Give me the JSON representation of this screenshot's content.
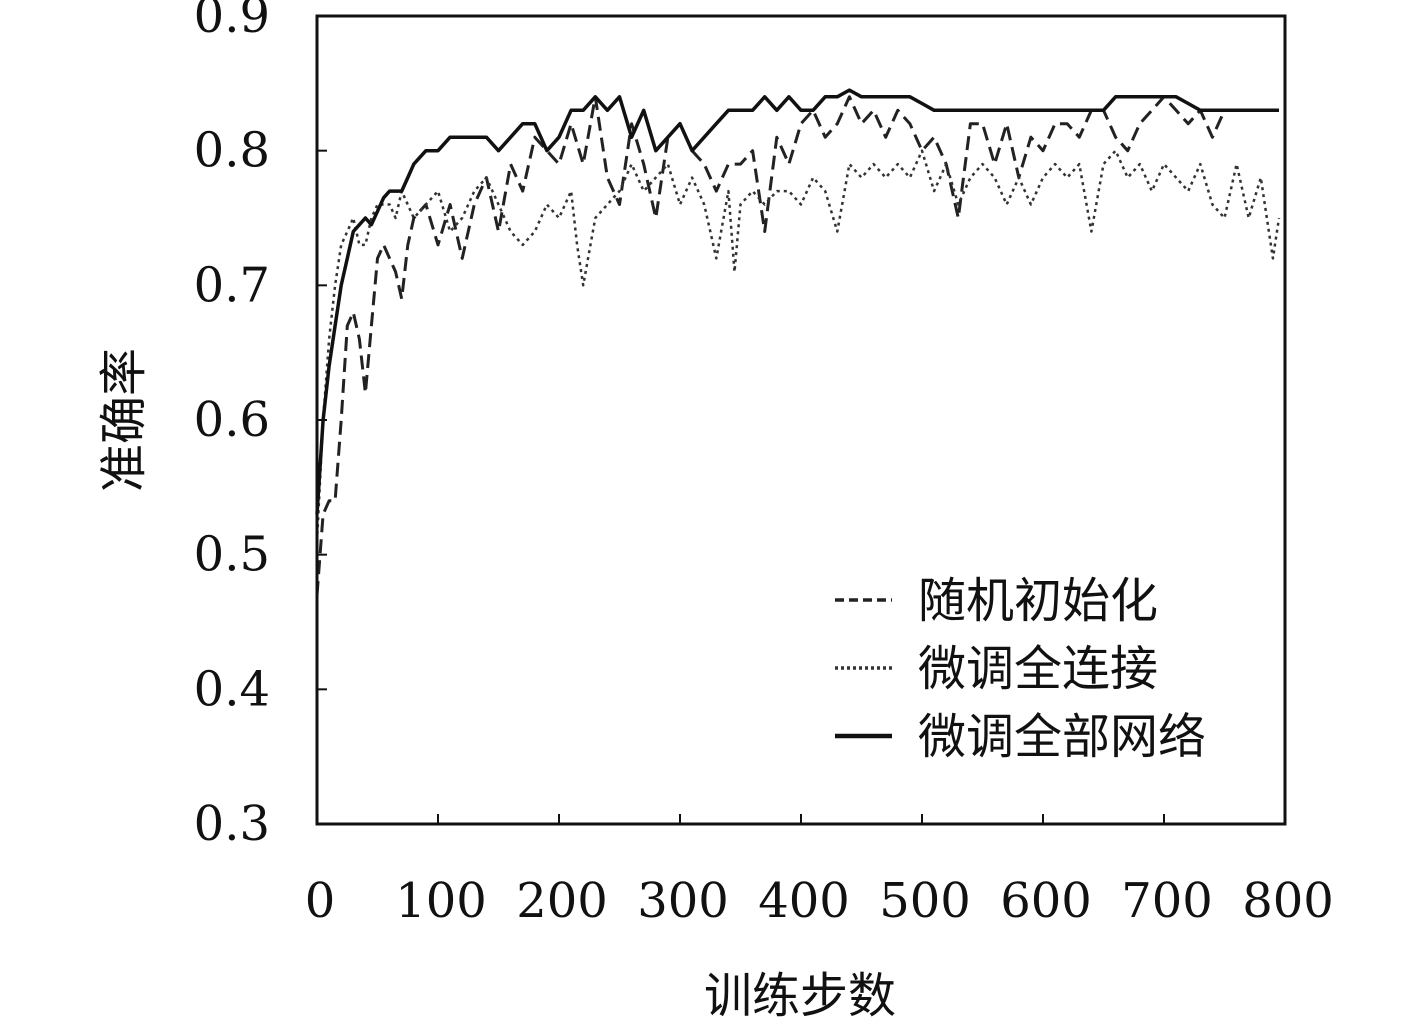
{
  "chart_data": {
    "type": "line",
    "title": "",
    "xlabel": "训练步数",
    "ylabel": "准确率",
    "xlim": [
      0,
      800
    ],
    "ylim": [
      0.3,
      0.9
    ],
    "xticks": [
      "0",
      "100",
      "200",
      "300",
      "400",
      "500",
      "600",
      "700",
      "800"
    ],
    "yticks": [
      "0.3",
      "0.4",
      "0.5",
      "0.6",
      "0.7",
      "0.8",
      "0.9"
    ],
    "grid": false,
    "legend_position": "lower-right",
    "series": [
      {
        "name": "随机初始化",
        "style": "dashed",
        "color": "#222222",
        "x": [
          0,
          5,
          10,
          15,
          20,
          25,
          30,
          35,
          40,
          45,
          50,
          55,
          60,
          65,
          70,
          75,
          80,
          90,
          100,
          110,
          120,
          130,
          140,
          150,
          160,
          170,
          180,
          190,
          200,
          210,
          220,
          230,
          240,
          250,
          260,
          270,
          280,
          290,
          300,
          310,
          320,
          330,
          340,
          350,
          360,
          370,
          380,
          390,
          400,
          410,
          420,
          430,
          440,
          450,
          460,
          470,
          480,
          490,
          500,
          510,
          520,
          530,
          540,
          550,
          560,
          570,
          580,
          590,
          600,
          610,
          620,
          630,
          640,
          650,
          660,
          670,
          680,
          690,
          700,
          710,
          720,
          730,
          740,
          750,
          760,
          770,
          780,
          790,
          795
        ],
        "y": [
          0.47,
          0.53,
          0.54,
          0.54,
          0.6,
          0.67,
          0.68,
          0.66,
          0.62,
          0.67,
          0.72,
          0.73,
          0.72,
          0.71,
          0.69,
          0.73,
          0.75,
          0.76,
          0.73,
          0.76,
          0.72,
          0.76,
          0.78,
          0.74,
          0.79,
          0.77,
          0.81,
          0.8,
          0.79,
          0.82,
          0.79,
          0.84,
          0.78,
          0.76,
          0.82,
          0.79,
          0.75,
          0.81,
          0.82,
          0.8,
          0.79,
          0.77,
          0.79,
          0.79,
          0.8,
          0.74,
          0.81,
          0.79,
          0.82,
          0.83,
          0.81,
          0.82,
          0.84,
          0.82,
          0.83,
          0.81,
          0.83,
          0.82,
          0.8,
          0.81,
          0.79,
          0.75,
          0.82,
          0.82,
          0.79,
          0.82,
          0.78,
          0.81,
          0.8,
          0.82,
          0.82,
          0.81,
          0.83,
          0.83,
          0.81,
          0.8,
          0.82,
          0.83,
          0.84,
          0.83,
          0.82,
          0.83,
          0.81,
          0.83,
          0.83,
          0.83,
          0.83,
          0.83,
          0.83
        ]
      },
      {
        "name": "微调全连接",
        "style": "dotted",
        "color": "#333333",
        "x": [
          0,
          5,
          10,
          15,
          20,
          25,
          30,
          35,
          40,
          45,
          50,
          55,
          60,
          65,
          70,
          80,
          90,
          100,
          110,
          120,
          130,
          140,
          150,
          160,
          170,
          180,
          190,
          200,
          210,
          215,
          220,
          230,
          240,
          250,
          260,
          270,
          280,
          290,
          300,
          310,
          320,
          325,
          330,
          340,
          345,
          350,
          360,
          370,
          380,
          390,
          400,
          410,
          420,
          430,
          440,
          450,
          460,
          470,
          480,
          490,
          500,
          510,
          520,
          530,
          540,
          550,
          560,
          570,
          580,
          590,
          600,
          610,
          620,
          630,
          640,
          650,
          660,
          670,
          680,
          690,
          700,
          710,
          720,
          730,
          740,
          750,
          760,
          770,
          780,
          790,
          795
        ],
        "y": [
          0.51,
          0.6,
          0.66,
          0.7,
          0.73,
          0.74,
          0.75,
          0.73,
          0.73,
          0.75,
          0.76,
          0.76,
          0.76,
          0.75,
          0.77,
          0.75,
          0.76,
          0.77,
          0.74,
          0.75,
          0.77,
          0.78,
          0.76,
          0.74,
          0.73,
          0.74,
          0.76,
          0.75,
          0.77,
          0.73,
          0.7,
          0.75,
          0.76,
          0.77,
          0.79,
          0.77,
          0.78,
          0.79,
          0.76,
          0.78,
          0.76,
          0.74,
          0.72,
          0.77,
          0.71,
          0.76,
          0.77,
          0.76,
          0.77,
          0.77,
          0.76,
          0.78,
          0.77,
          0.74,
          0.79,
          0.78,
          0.79,
          0.78,
          0.79,
          0.78,
          0.8,
          0.77,
          0.79,
          0.76,
          0.78,
          0.79,
          0.78,
          0.76,
          0.78,
          0.76,
          0.78,
          0.79,
          0.78,
          0.79,
          0.74,
          0.79,
          0.8,
          0.78,
          0.79,
          0.77,
          0.79,
          0.78,
          0.77,
          0.79,
          0.76,
          0.75,
          0.79,
          0.75,
          0.78,
          0.72,
          0.75
        ]
      },
      {
        "name": "微调全部网络",
        "style": "solid",
        "color": "#111111",
        "x": [
          0,
          5,
          10,
          15,
          20,
          25,
          30,
          35,
          40,
          45,
          50,
          55,
          60,
          65,
          70,
          75,
          80,
          90,
          100,
          110,
          120,
          130,
          140,
          150,
          160,
          170,
          180,
          190,
          200,
          210,
          220,
          230,
          240,
          250,
          260,
          270,
          280,
          290,
          300,
          310,
          320,
          330,
          340,
          350,
          360,
          370,
          380,
          390,
          400,
          410,
          420,
          430,
          440,
          450,
          460,
          470,
          480,
          490,
          500,
          510,
          520,
          530,
          540,
          550,
          560,
          570,
          580,
          590,
          600,
          610,
          620,
          630,
          640,
          650,
          660,
          670,
          680,
          690,
          700,
          710,
          720,
          730,
          740,
          750,
          760,
          770,
          780,
          790,
          795
        ],
        "y": [
          0.53,
          0.6,
          0.64,
          0.67,
          0.7,
          0.72,
          0.74,
          0.745,
          0.75,
          0.745,
          0.755,
          0.765,
          0.77,
          0.77,
          0.77,
          0.78,
          0.79,
          0.8,
          0.8,
          0.81,
          0.81,
          0.81,
          0.81,
          0.8,
          0.81,
          0.82,
          0.82,
          0.8,
          0.81,
          0.83,
          0.83,
          0.84,
          0.83,
          0.84,
          0.81,
          0.83,
          0.8,
          0.81,
          0.82,
          0.8,
          0.81,
          0.82,
          0.83,
          0.83,
          0.83,
          0.84,
          0.83,
          0.84,
          0.83,
          0.83,
          0.84,
          0.84,
          0.845,
          0.84,
          0.84,
          0.84,
          0.84,
          0.84,
          0.835,
          0.83,
          0.83,
          0.83,
          0.83,
          0.83,
          0.83,
          0.83,
          0.83,
          0.83,
          0.83,
          0.83,
          0.83,
          0.83,
          0.83,
          0.83,
          0.84,
          0.84,
          0.84,
          0.84,
          0.84,
          0.84,
          0.835,
          0.83,
          0.83,
          0.83,
          0.83,
          0.83,
          0.83,
          0.83,
          0.83
        ]
      }
    ]
  }
}
